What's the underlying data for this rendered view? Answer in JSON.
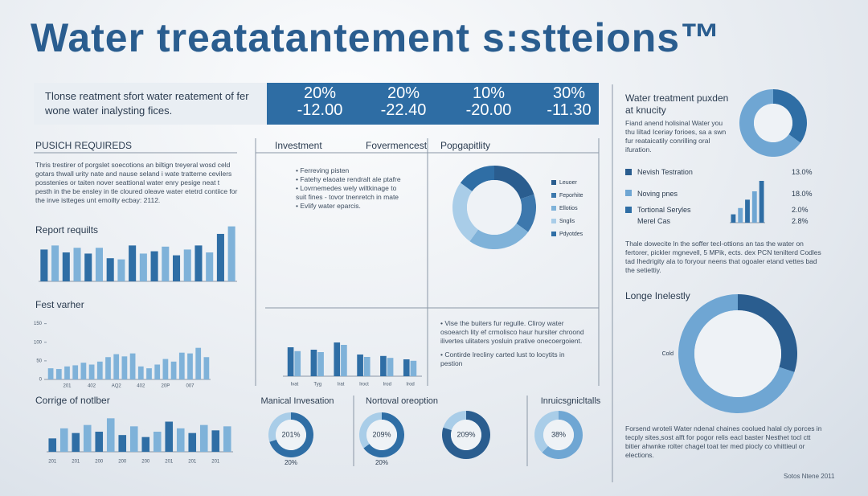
{
  "title": "Water treatatantement s:stteions™",
  "banner": {
    "text": "Tlonse reatment sfort water reatement of fer wone water inalysting fices.",
    "stats": [
      {
        "top": "20%",
        "bottom": "-12.00"
      },
      {
        "top": "20%",
        "bottom": "-22.40"
      },
      {
        "top": "10%",
        "bottom": "-20.00"
      },
      {
        "top": "30%",
        "bottom": "-11.30"
      }
    ]
  },
  "left": {
    "heading": "PUSICH REQUIREDS",
    "paragraph": "Thris trestirer of porgslet soecotions an biltign treyeral wosd celd gotars thwall urity nate and nause seland i wate tratterne cevilers posstenies or taiten nover seattional water enry pesige neat t pesth in the be ensley in tle cloured oleave water etetrd contiice for the inve istteges unt emoilty ecbay: 2112."
  },
  "middle": {
    "headers": [
      "Investment",
      "Fovermencest",
      "Popgapitlity"
    ],
    "bullets": [
      "• Ferreving pisten",
      "• Fatehy elaoate rendralt ale ptafre",
      "• Lovrnemedes wely wiltkinage to",
      "suit fines - tovor tnenretch in mate",
      "• Evlify water eparcis."
    ],
    "bullets2": [
      "• Vise the buiters fur regulle. Cliroy water",
      "osoearch lity ef crmolisco haur hursiter chroond ilivertes ulitaters yosluin prative onecoergoient.",
      "• Contirde lrecliny carted lust to locytits in pestion"
    ]
  },
  "right": {
    "heading": "Water treatment puxden at knucity",
    "paragraph1": "Fiand anend holisinal Water you thu liltad Iceriay forioes, sa a swn fur reataicatily conrilling oral ifuration.",
    "list": [
      {
        "label": "Nevish Testration",
        "value": "13.0%"
      },
      {
        "label": "Noving pnes",
        "value": "18.0%"
      },
      {
        "label": "Tortional Seryles",
        "value": "2.0%"
      },
      {
        "label": "Merel Cas",
        "value": "2.8%"
      }
    ],
    "paragraph2": "Thale dowecite ln the soffer tecl-ottions an tas the water on fertorer, pickler mgnevell, 5 MPik, ects. dex PCN tenilterd Codles tad Ihedrigity ala to foryour neens that ogoaler etand vettes bad the setiettiy.",
    "heading2": "Longe Inelestly",
    "paragraph3": "Forsend wroteli Water ndenal chaines coolued halal cly porces in tecply sites,sost alft for pogor relis eacl baster Nesthet tocl ctt bitier ahwnke rolter chagel toat ter med piocly co vhittieul or elections."
  },
  "footer": "Sotos Ntene 2011",
  "chart_data": [
    {
      "type": "bar",
      "title": "Report requilts",
      "ylim": [
        0,
        100
      ],
      "colors": [
        "#2f6ea5",
        "#7fb2d9"
      ],
      "values": [
        55,
        62,
        50,
        58,
        48,
        58,
        40,
        38,
        62,
        48,
        52,
        60,
        45,
        55,
        62,
        50,
        82,
        95
      ]
    },
    {
      "type": "bar",
      "title": "Fest varher",
      "ylim": [
        0,
        160
      ],
      "yticks": [
        0,
        50,
        100,
        150
      ],
      "colors": [
        "#7fb2d9"
      ],
      "categories": [
        null,
        null,
        "201",
        null,
        null,
        "402",
        null,
        null,
        "AQ2",
        null,
        null,
        "402",
        null,
        null,
        "20P",
        null,
        null,
        "007",
        null,
        null
      ],
      "values": [
        30,
        28,
        35,
        38,
        45,
        40,
        48,
        60,
        68,
        62,
        70,
        35,
        30,
        40,
        55,
        48,
        72,
        70,
        85,
        60
      ]
    },
    {
      "type": "bar",
      "title": "Corrige of notlber",
      "ylim": [
        0,
        60
      ],
      "colors": [
        "#2f6ea5",
        "#7fb2d9"
      ],
      "categories": [
        "201",
        null,
        "201",
        null,
        "200",
        null,
        "200",
        null,
        "200",
        null,
        "201",
        null,
        "201",
        null,
        "201",
        null
      ],
      "values": [
        20,
        35,
        28,
        40,
        30,
        50,
        25,
        38,
        22,
        30,
        45,
        35,
        28,
        40,
        32,
        38
      ]
    },
    {
      "type": "bar",
      "ylim": [
        0,
        80
      ],
      "categories": [
        "Ivat",
        "Tyg",
        "Irat",
        "Iroct",
        "Irod",
        "Irod"
      ],
      "series": [
        {
          "color": "#2f6ea5",
          "values": [
            60,
            55,
            70,
            45,
            42,
            35
          ]
        },
        {
          "color": "#7fb2d9",
          "values": [
            52,
            50,
            65,
            40,
            38,
            32
          ]
        }
      ]
    },
    {
      "type": "pie",
      "categories": [
        "Leuoer",
        "Feporhite",
        "Ellotios",
        "Snglis",
        "Pdyotdes"
      ],
      "values": [
        20,
        15,
        25,
        25,
        15
      ],
      "colors": [
        "#2a5d8f",
        "#3d78ad",
        "#7fb2d9",
        "#a9cde8",
        "#2f6ea5"
      ]
    },
    {
      "type": "pie",
      "values": [
        35,
        65
      ],
      "colors": [
        "#2f6ea5",
        "#6fa6d3"
      ]
    },
    {
      "type": "bar",
      "ylim": [
        0,
        100
      ],
      "colors": [
        "#2f6ea5",
        "#6fa6d3"
      ],
      "values": [
        20,
        35,
        55,
        75,
        100
      ]
    },
    {
      "type": "pie",
      "values": [
        30,
        70
      ],
      "colors": [
        "#2a5d8f",
        "#6fa6d3"
      ],
      "annotation": "Cold"
    },
    {
      "type": "pie",
      "title": "Manical Invesation",
      "center_label": "201%",
      "sublabel": "20%",
      "values": [
        70,
        30
      ],
      "colors": [
        "#2f6ea5",
        "#a9cde8"
      ]
    },
    {
      "type": "pie",
      "title": "Nortoval oreoption",
      "center_label": "209%",
      "sublabel": "20%",
      "values": [
        65,
        35
      ],
      "colors": [
        "#2f6ea5",
        "#a9cde8"
      ]
    },
    {
      "type": "pie",
      "center_label": "209%",
      "values": [
        80,
        20
      ],
      "colors": [
        "#2a5d8f",
        "#a9cde8"
      ]
    },
    {
      "type": "pie",
      "title": "Inruicsgnicltalls",
      "center_label": "38%",
      "values": [
        62,
        38
      ],
      "colors": [
        "#6fa6d3",
        "#a9cde8"
      ]
    }
  ]
}
